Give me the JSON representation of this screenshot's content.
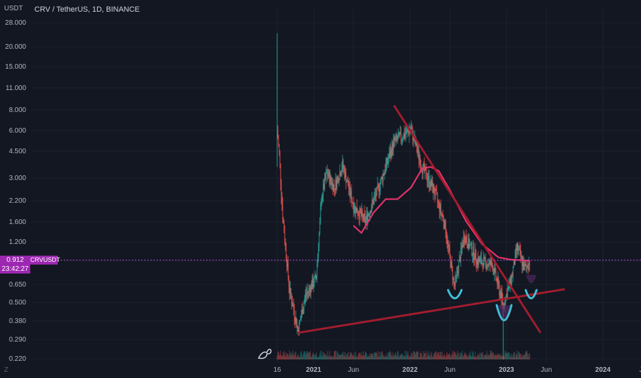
{
  "header": {
    "title": "CRV / TetherUS, 1D, BINANCE",
    "unit": "USDT"
  },
  "price_label": {
    "value": "0.912",
    "countdown": "23:42:27",
    "symbol": "CRVUSDT"
  },
  "settings_glyph": "Z",
  "colors": {
    "background": "#131722",
    "candle_up": "#26a69a",
    "candle_down": "#ef5350",
    "trendline": "#a11d2e",
    "ma": "#e6336b",
    "cup": "#3fbfd6",
    "price_line": "#b44be6",
    "tag": "#9c27b0"
  },
  "chart_data": {
    "type": "candlestick",
    "y_scale": "log",
    "ylim": [
      0.22,
      30
    ],
    "y_ticks": [
      "28.000",
      "20.000",
      "15.000",
      "11.000",
      "8.000",
      "6.000",
      "4.500",
      "3.000",
      "2.200",
      "1.600",
      "1.200",
      "0.912",
      "0.650",
      "0.500",
      "0.380",
      "0.290",
      "0.220"
    ],
    "x_ticks": [
      "16",
      "2021",
      "Jun",
      "2022",
      "Jun",
      "2023",
      "Jun",
      "2024",
      "Ju"
    ],
    "price_path": [
      {
        "date": "2020-08-16",
        "price": 6.0
      },
      {
        "date": "2020-08-24",
        "price": 4.2
      },
      {
        "date": "2020-09-05",
        "price": 1.8
      },
      {
        "date": "2020-10-01",
        "price": 0.6
      },
      {
        "date": "2020-11-03",
        "price": 0.33
      },
      {
        "date": "2020-12-01",
        "price": 0.55
      },
      {
        "date": "2021-01-10",
        "price": 0.7
      },
      {
        "date": "2021-02-01",
        "price": 2.3
      },
      {
        "date": "2021-02-20",
        "price": 3.2
      },
      {
        "date": "2021-03-20",
        "price": 2.6
      },
      {
        "date": "2021-04-20",
        "price": 3.6
      },
      {
        "date": "2021-06-01",
        "price": 2.0
      },
      {
        "date": "2021-07-15",
        "price": 1.6
      },
      {
        "date": "2021-09-01",
        "price": 2.5
      },
      {
        "date": "2021-11-01",
        "price": 5.0
      },
      {
        "date": "2022-01-05",
        "price": 6.0
      },
      {
        "date": "2022-02-15",
        "price": 3.5
      },
      {
        "date": "2022-04-01",
        "price": 2.5
      },
      {
        "date": "2022-05-10",
        "price": 1.6
      },
      {
        "date": "2022-06-18",
        "price": 0.62
      },
      {
        "date": "2022-07-25",
        "price": 1.3
      },
      {
        "date": "2022-09-15",
        "price": 0.9
      },
      {
        "date": "2022-11-09",
        "price": 0.85
      },
      {
        "date": "2022-12-20",
        "price": 0.48
      },
      {
        "date": "2023-01-20",
        "price": 0.7
      },
      {
        "date": "2023-02-10",
        "price": 1.1
      },
      {
        "date": "2023-03-10",
        "price": 0.8
      },
      {
        "date": "2023-04-01",
        "price": 0.912
      }
    ],
    "ma_path": [
      {
        "date": "2021-06-01",
        "price": 1.5
      },
      {
        "date": "2021-07-01",
        "price": 1.35
      },
      {
        "date": "2021-08-15",
        "price": 1.8
      },
      {
        "date": "2021-10-01",
        "price": 2.2
      },
      {
        "date": "2021-11-15",
        "price": 2.2
      },
      {
        "date": "2022-01-05",
        "price": 2.6
      },
      {
        "date": "2022-02-15",
        "price": 3.4
      },
      {
        "date": "2022-03-20",
        "price": 3.5
      },
      {
        "date": "2022-04-20",
        "price": 3.3
      },
      {
        "date": "2022-06-01",
        "price": 2.5
      },
      {
        "date": "2022-08-01",
        "price": 1.6
      },
      {
        "date": "2022-10-01",
        "price": 1.15
      },
      {
        "date": "2022-12-01",
        "price": 0.95
      },
      {
        "date": "2023-01-15",
        "price": 0.92
      },
      {
        "date": "2023-03-01",
        "price": 0.91
      },
      {
        "date": "2023-04-01",
        "price": 0.9
      }
    ],
    "trendlines": [
      {
        "from": {
          "date": "2020-11-03",
          "price": 0.32
        },
        "to": {
          "date": "2023-08-10",
          "price": 0.6
        }
      },
      {
        "from": {
          "date": "2021-11-01",
          "price": 8.5
        },
        "to": {
          "date": "2023-05-10",
          "price": 0.32
        }
      }
    ],
    "cups": [
      {
        "start": "2022-05-25",
        "end": "2022-07-15",
        "depth": "shallow"
      },
      {
        "start": "2022-11-25",
        "end": "2023-01-20",
        "depth": "deep"
      },
      {
        "start": "2023-03-15",
        "end": "2023-04-25",
        "depth": "shallow"
      }
    ],
    "current_price": 0.912
  }
}
